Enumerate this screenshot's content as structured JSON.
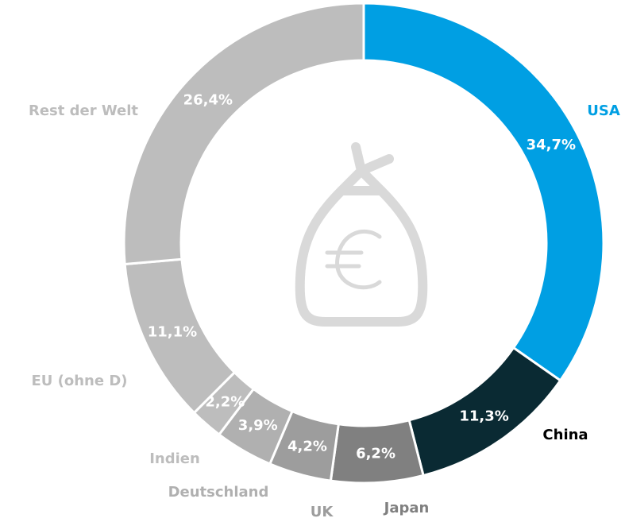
{
  "chart_data": {
    "type": "donut",
    "categories": [
      "USA",
      "China",
      "Japan",
      "UK",
      "Deutschland",
      "Indien",
      "EU (ohne D)",
      "Rest der Welt"
    ],
    "values": [
      34.7,
      11.3,
      6.2,
      4.2,
      3.9,
      2.2,
      11.1,
      26.4
    ],
    "value_labels": [
      "34,7%",
      "11,3%",
      "6,2%",
      "4,2%",
      "3,9%",
      "2,2%",
      "11,1%",
      "26,4%"
    ],
    "colors": [
      "#009fe3",
      "#0a2a33",
      "#808080",
      "#9d9d9d",
      "#b0b0b0",
      "#bdbdbd",
      "#bdbdbd",
      "#bdbdbd"
    ]
  }
}
